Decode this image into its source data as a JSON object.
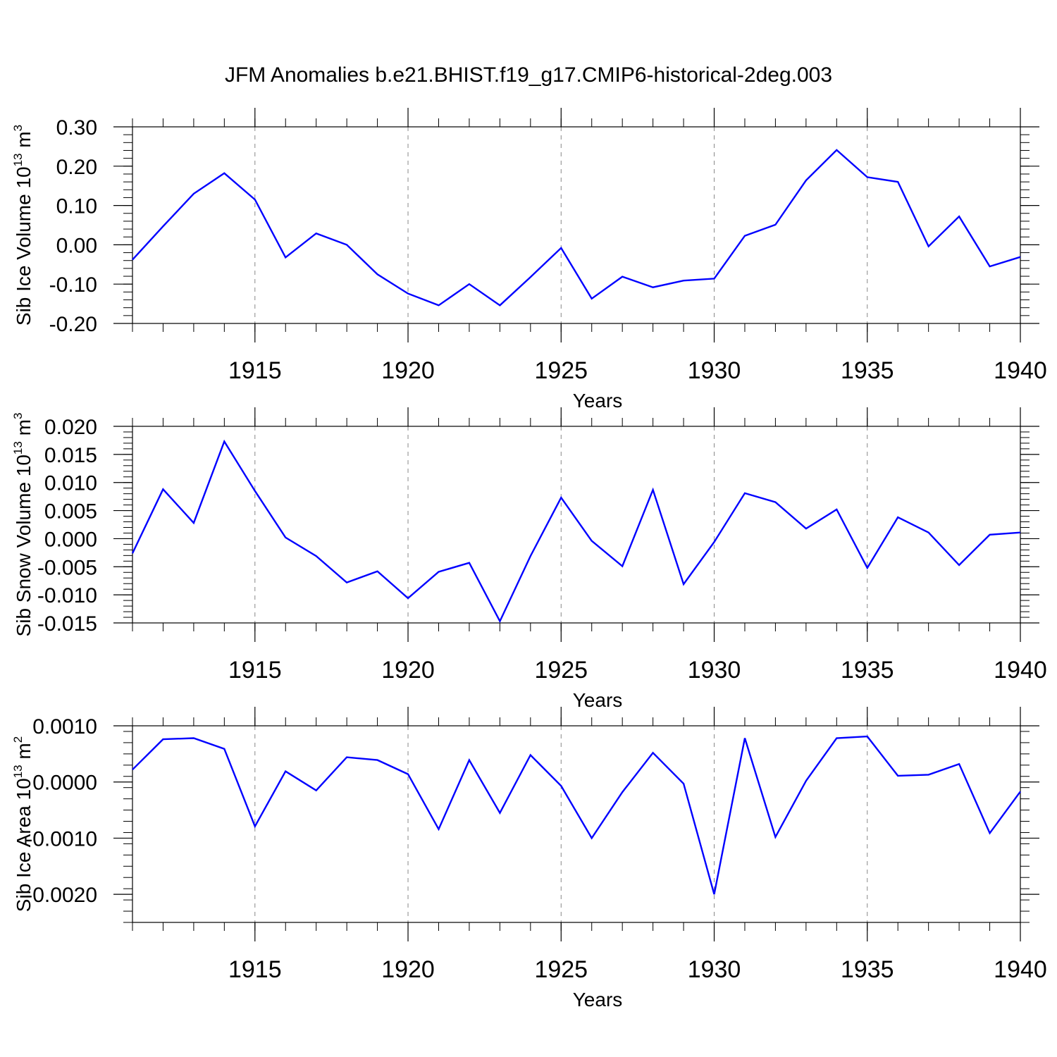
{
  "chart_data": {
    "title": "JFM Anomalies b.e21.BHIST.f19_g17.CMIP6-historical-2deg.003",
    "panels": [
      {
        "type": "line",
        "name": "ice-volume",
        "ylabel_main": "Sib Ice Volume 10",
        "ylabel_exp": "13",
        "ylabel_unit": "m",
        "ylabel_unit_exp": "3",
        "xlabel": "Years",
        "xlim": [
          1911,
          1940
        ],
        "ylim": [
          -0.2,
          0.3
        ],
        "yticks": [
          0.3,
          0.2,
          0.1,
          0.0,
          -0.1,
          -0.2
        ],
        "ytick_labels": [
          "0.30",
          "0.20",
          "0.10",
          "0.00",
          "-0.10",
          "-0.20"
        ],
        "ydecimals": 2,
        "line_color": "#0000ff",
        "x": [
          1911,
          1912,
          1913,
          1914,
          1915,
          1916,
          1917,
          1918,
          1919,
          1920,
          1921,
          1922,
          1923,
          1924,
          1925,
          1926,
          1927,
          1928,
          1929,
          1930,
          1931,
          1932,
          1933,
          1934,
          1935,
          1936,
          1937,
          1938,
          1939,
          1940
        ],
        "values": [
          -0.038,
          0.047,
          0.13,
          0.182,
          0.115,
          -0.032,
          0.029,
          0.0,
          -0.075,
          -0.124,
          -0.154,
          -0.1,
          -0.154,
          -0.082,
          -0.008,
          -0.137,
          -0.081,
          -0.108,
          -0.091,
          -0.086,
          0.023,
          0.051,
          0.164,
          0.241,
          0.172,
          0.16,
          -0.004,
          0.072,
          -0.055,
          -0.031
        ]
      },
      {
        "type": "line",
        "name": "snow-volume",
        "ylabel_main": "Sib Snow Volume 10",
        "ylabel_exp": "13",
        "ylabel_unit": "m",
        "ylabel_unit_exp": "3",
        "xlabel": "Years",
        "xlim": [
          1911,
          1940
        ],
        "ylim": [
          -0.015,
          0.02
        ],
        "yticks": [
          0.02,
          0.015,
          0.01,
          0.005,
          0.0,
          -0.005,
          -0.01,
          -0.015
        ],
        "ytick_labels": [
          "0.020",
          "0.015",
          "0.010",
          "0.005",
          "0.000",
          "-0.005",
          "-0.010",
          "-0.015"
        ],
        "ydecimals": 3,
        "line_color": "#0000ff",
        "x": [
          1911,
          1912,
          1913,
          1914,
          1915,
          1916,
          1917,
          1918,
          1919,
          1920,
          1921,
          1922,
          1923,
          1924,
          1925,
          1926,
          1927,
          1928,
          1929,
          1930,
          1931,
          1932,
          1933,
          1934,
          1935,
          1936,
          1937,
          1938,
          1939,
          1940
        ],
        "values": [
          -0.0026,
          0.0088,
          0.0028,
          0.0173,
          0.0085,
          0.0002,
          -0.0031,
          -0.0078,
          -0.0058,
          -0.0106,
          -0.0059,
          -0.0043,
          -0.0147,
          -0.0031,
          0.0073,
          -0.0004,
          -0.0049,
          0.0087,
          -0.0081,
          -0.0006,
          0.0081,
          0.0065,
          0.0018,
          0.0052,
          -0.0052,
          0.0038,
          0.0011,
          -0.0047,
          0.0007,
          0.0011
        ]
      },
      {
        "type": "line",
        "name": "ice-area",
        "ylabel_main": "Sib Ice Area 10",
        "ylabel_exp": "13",
        "ylabel_unit": "m",
        "ylabel_unit_exp": "2",
        "xlabel": "Years",
        "xlim": [
          1911,
          1940
        ],
        "ylim": [
          -0.0025,
          0.001
        ],
        "yticks": [
          0.001,
          0.0,
          -0.001,
          -0.002
        ],
        "ytick_labels": [
          "0.0010",
          "0.0000",
          "-0.0010",
          "-0.0020"
        ],
        "ydecimals": 4,
        "line_color": "#0000ff",
        "x": [
          1911,
          1912,
          1913,
          1914,
          1915,
          1916,
          1917,
          1918,
          1919,
          1920,
          1921,
          1922,
          1923,
          1924,
          1925,
          1926,
          1927,
          1928,
          1929,
          1930,
          1931,
          1932,
          1933,
          1934,
          1935,
          1936,
          1937,
          1938,
          1939,
          1940
        ],
        "values": [
          0.00022,
          0.00076,
          0.00078,
          0.00059,
          -0.00079,
          0.00019,
          -0.00015,
          0.00044,
          0.00039,
          0.00014,
          -0.00084,
          0.00039,
          -0.00055,
          0.00048,
          -7e-05,
          -0.001,
          -0.00018,
          0.00052,
          -3e-05,
          -0.002,
          0.00078,
          -0.00098,
          2e-05,
          0.00078,
          0.00081,
          0.00011,
          0.00013,
          0.00032,
          -0.00091,
          -0.00017
        ]
      }
    ],
    "xticks": [
      1915,
      1920,
      1925,
      1930,
      1935,
      1940
    ],
    "xtick_labels": [
      "1915",
      "1920",
      "1925",
      "1930",
      "1935",
      "1940"
    ],
    "vgrid_years": [
      1915,
      1920,
      1925,
      1930,
      1935
    ],
    "vgrid_style": "dashed gray"
  }
}
